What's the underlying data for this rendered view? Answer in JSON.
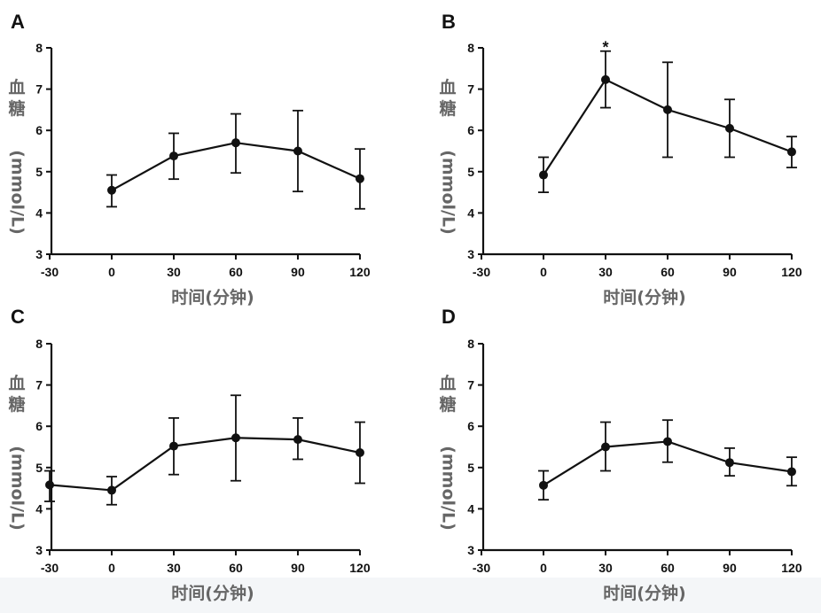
{
  "chart_data": [
    {
      "type": "line",
      "panel": "A",
      "xlabel": "时间(分钟)",
      "ylabel_chars": [
        "血",
        "糖"
      ],
      "ylabel_unit": "(mmol/L)",
      "x": [
        0,
        30,
        60,
        90,
        120
      ],
      "y": [
        4.55,
        5.38,
        5.7,
        5.5,
        4.83
      ],
      "err_low": [
        4.15,
        4.82,
        4.97,
        4.52,
        4.1
      ],
      "err_high": [
        4.92,
        5.93,
        6.4,
        6.48,
        5.55
      ],
      "xlim": [
        -30,
        120
      ],
      "ylim": [
        3,
        8
      ],
      "xticks": [
        "-30",
        "0",
        "30",
        "60",
        "90",
        "120"
      ],
      "yticks": [
        "3",
        "4",
        "5",
        "6",
        "7",
        "8"
      ],
      "annotations": []
    },
    {
      "type": "line",
      "panel": "B",
      "xlabel": "时间(分钟)",
      "ylabel_chars": [
        "血",
        "糖"
      ],
      "ylabel_unit": "(mmol/L)",
      "x": [
        0,
        30,
        60,
        90,
        120
      ],
      "y": [
        4.92,
        7.23,
        6.5,
        6.05,
        5.48
      ],
      "err_low": [
        4.5,
        6.55,
        5.35,
        5.35,
        5.1
      ],
      "err_high": [
        5.35,
        7.92,
        7.65,
        6.75,
        5.85
      ],
      "xlim": [
        -30,
        120
      ],
      "ylim": [
        3,
        8
      ],
      "xticks": [
        "-30",
        "0",
        "30",
        "60",
        "90",
        "120"
      ],
      "yticks": [
        "3",
        "4",
        "5",
        "6",
        "7",
        "8"
      ],
      "annotations": [
        {
          "x": 30,
          "y": 8.05,
          "text": "*"
        }
      ]
    },
    {
      "type": "line",
      "panel": "C",
      "xlabel": "时间(分钟)",
      "ylabel_chars": [
        "血",
        "糖"
      ],
      "ylabel_unit": "(mmol/L)",
      "x": [
        -30,
        0,
        30,
        60,
        90,
        120
      ],
      "y": [
        4.58,
        4.45,
        5.52,
        5.72,
        5.68,
        5.36
      ],
      "err_low": [
        4.18,
        4.1,
        4.83,
        4.68,
        5.2,
        4.62
      ],
      "err_high": [
        4.92,
        4.78,
        6.2,
        6.75,
        6.2,
        6.1
      ],
      "xlim": [
        -30,
        120
      ],
      "ylim": [
        3,
        8
      ],
      "xticks": [
        "-30",
        "0",
        "30",
        "60",
        "90",
        "120"
      ],
      "yticks": [
        "3",
        "4",
        "5",
        "6",
        "7",
        "8"
      ],
      "annotations": []
    },
    {
      "type": "line",
      "panel": "D",
      "xlabel": "时间(分钟)",
      "ylabel_chars": [
        "血",
        "糖"
      ],
      "ylabel_unit": "(mmol/L)",
      "x": [
        0,
        30,
        60,
        90,
        120
      ],
      "y": [
        4.57,
        5.5,
        5.63,
        5.12,
        4.9
      ],
      "err_low": [
        4.22,
        4.92,
        5.13,
        4.8,
        4.56
      ],
      "err_high": [
        4.92,
        6.1,
        6.15,
        5.47,
        5.25
      ],
      "xlim": [
        -30,
        120
      ],
      "ylim": [
        3,
        8
      ],
      "xticks": [
        "-30",
        "0",
        "30",
        "60",
        "90",
        "120"
      ],
      "yticks": [
        "3",
        "4",
        "5",
        "6",
        "7",
        "8"
      ],
      "annotations": []
    }
  ],
  "colors": {
    "line": "#111111",
    "axis_title": "#666666",
    "background": "#ffffff",
    "bottom_band": "#f4f6f8"
  }
}
